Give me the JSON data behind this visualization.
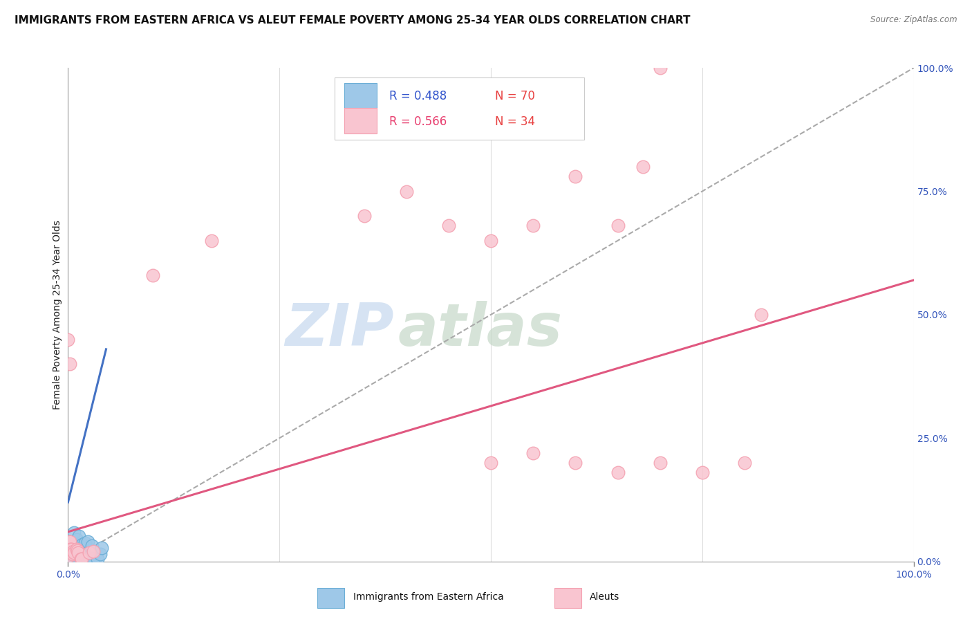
{
  "title": "IMMIGRANTS FROM EASTERN AFRICA VS ALEUT FEMALE POVERTY AMONG 25-34 YEAR OLDS CORRELATION CHART",
  "source": "Source: ZipAtlas.com",
  "ylabel": "Female Poverty Among 25-34 Year Olds",
  "ylabel_right_ticks": [
    "0.0%",
    "25.0%",
    "50.0%",
    "75.0%",
    "100.0%"
  ],
  "watermark_zip": "ZIP",
  "watermark_atlas": "atlas",
  "legend_label_blue": "Immigrants from Eastern Africa",
  "legend_label_pink": "Aleuts",
  "blue_color": "#6baed6",
  "blue_fill": "#9ec8e8",
  "pink_color": "#f4a0b0",
  "pink_fill": "#f9c5d0",
  "blue_line_color": "#4472c4",
  "pink_line_color": "#e05880",
  "grey_line_color": "#aaaaaa",
  "blue_scatter": [
    [
      0.0,
      0.005
    ],
    [
      0.0,
      0.01
    ],
    [
      0.001,
      0.005
    ],
    [
      0.001,
      0.008
    ],
    [
      0.001,
      0.012
    ],
    [
      0.001,
      0.015
    ],
    [
      0.001,
      0.02
    ],
    [
      0.002,
      0.005
    ],
    [
      0.002,
      0.008
    ],
    [
      0.002,
      0.01
    ],
    [
      0.002,
      0.015
    ],
    [
      0.002,
      0.02
    ],
    [
      0.002,
      0.025
    ],
    [
      0.003,
      0.005
    ],
    [
      0.003,
      0.008
    ],
    [
      0.003,
      0.01
    ],
    [
      0.003,
      0.015
    ],
    [
      0.003,
      0.02
    ],
    [
      0.004,
      0.005
    ],
    [
      0.004,
      0.01
    ],
    [
      0.004,
      0.015
    ],
    [
      0.004,
      0.02
    ],
    [
      0.004,
      0.03
    ],
    [
      0.005,
      0.005
    ],
    [
      0.005,
      0.01
    ],
    [
      0.005,
      0.015
    ],
    [
      0.005,
      0.025
    ],
    [
      0.006,
      0.008
    ],
    [
      0.006,
      0.015
    ],
    [
      0.006,
      0.02
    ],
    [
      0.007,
      0.005
    ],
    [
      0.007,
      0.01
    ],
    [
      0.007,
      0.025
    ],
    [
      0.007,
      0.032
    ],
    [
      0.008,
      0.005
    ],
    [
      0.008,
      0.012
    ],
    [
      0.008,
      0.02
    ],
    [
      0.009,
      0.005
    ],
    [
      0.009,
      0.01
    ],
    [
      0.01,
      0.008
    ],
    [
      0.01,
      0.018
    ],
    [
      0.01,
      0.028
    ],
    [
      0.011,
      0.01
    ],
    [
      0.011,
      0.022
    ],
    [
      0.012,
      0.005
    ],
    [
      0.012,
      0.015
    ],
    [
      0.013,
      0.012
    ],
    [
      0.014,
      0.015
    ],
    [
      0.015,
      0.005
    ],
    [
      0.015,
      0.018
    ],
    [
      0.016,
      0.005
    ],
    [
      0.016,
      0.012
    ],
    [
      0.017,
      0.008
    ],
    [
      0.018,
      0.01
    ],
    [
      0.02,
      0.005
    ],
    [
      0.02,
      0.015
    ],
    [
      0.022,
      0.008
    ],
    [
      0.025,
      0.01
    ],
    [
      0.03,
      0.005
    ],
    [
      0.007,
      0.058
    ],
    [
      0.01,
      0.045
    ],
    [
      0.013,
      0.052
    ],
    [
      0.017,
      0.035
    ],
    [
      0.02,
      0.038
    ],
    [
      0.023,
      0.04
    ],
    [
      0.028,
      0.032
    ],
    [
      0.035,
      0.005
    ],
    [
      0.038,
      0.015
    ],
    [
      0.04,
      0.028
    ]
  ],
  "pink_scatter": [
    [
      0.0,
      0.01
    ],
    [
      0.001,
      0.03
    ],
    [
      0.001,
      0.04
    ],
    [
      0.002,
      0.02
    ],
    [
      0.002,
      0.04
    ],
    [
      0.003,
      0.025
    ],
    [
      0.004,
      0.025
    ],
    [
      0.005,
      0.015
    ],
    [
      0.006,
      0.02
    ],
    [
      0.007,
      0.018
    ],
    [
      0.01,
      0.025
    ],
    [
      0.011,
      0.022
    ],
    [
      0.012,
      0.018
    ],
    [
      0.015,
      0.005
    ],
    [
      0.016,
      0.005
    ],
    [
      0.025,
      0.018
    ],
    [
      0.03,
      0.02
    ],
    [
      0.0,
      0.45
    ],
    [
      0.002,
      0.4
    ],
    [
      0.1,
      0.58
    ],
    [
      0.17,
      0.65
    ],
    [
      0.35,
      0.7
    ],
    [
      0.4,
      0.75
    ],
    [
      0.45,
      0.68
    ],
    [
      0.5,
      0.65
    ],
    [
      0.55,
      0.68
    ],
    [
      0.6,
      0.78
    ],
    [
      0.65,
      0.68
    ],
    [
      0.68,
      0.8
    ],
    [
      0.7,
      1.0
    ],
    [
      0.5,
      0.2
    ],
    [
      0.55,
      0.22
    ],
    [
      0.6,
      0.2
    ],
    [
      0.65,
      0.18
    ],
    [
      0.7,
      0.2
    ],
    [
      0.75,
      0.18
    ],
    [
      0.8,
      0.2
    ],
    [
      0.82,
      0.5
    ]
  ],
  "blue_trendline": [
    [
      0.0,
      0.12
    ],
    [
      0.045,
      0.43
    ]
  ],
  "pink_trendline": [
    [
      0.0,
      0.06
    ],
    [
      1.0,
      0.57
    ]
  ],
  "grey_trendline": [
    [
      0.0,
      0.0
    ],
    [
      1.0,
      1.0
    ]
  ],
  "xlim": [
    0.0,
    1.0
  ],
  "ylim": [
    0.0,
    1.0
  ],
  "background_color": "#ffffff",
  "grid_color": "#dddddd",
  "title_fontsize": 11,
  "axis_label_fontsize": 10,
  "tick_fontsize": 10
}
